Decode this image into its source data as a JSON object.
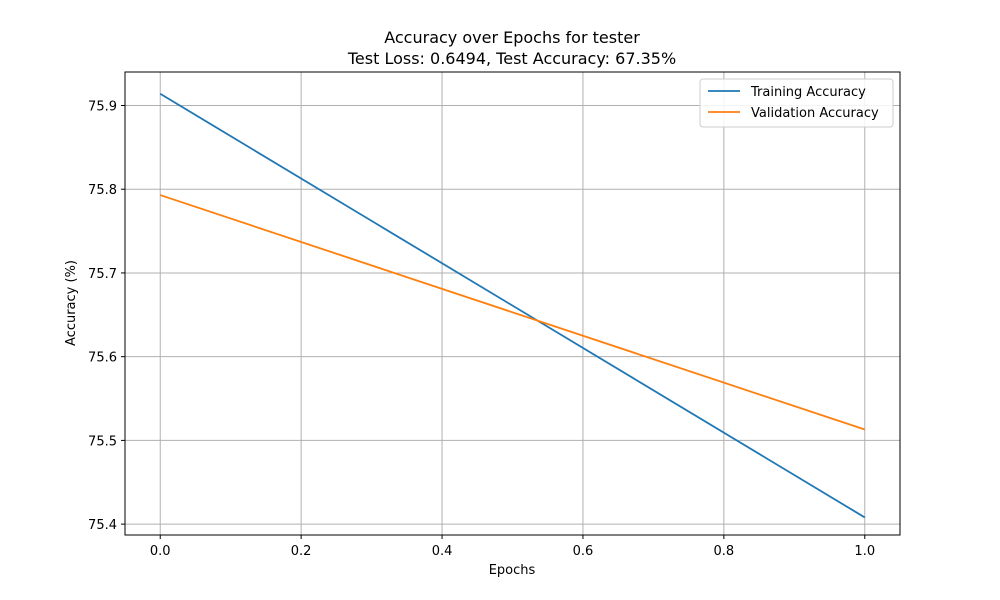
{
  "chart_data": {
    "type": "line",
    "title": "Accuracy over Epochs for tester",
    "subtitle": "Test Loss: 0.6494, Test Accuracy: 67.35%",
    "xlabel": "Epochs",
    "ylabel": "Accuracy (%)",
    "x": [
      0,
      1
    ],
    "xlim": [
      -0.05,
      1.05
    ],
    "ylim": [
      75.387,
      75.94
    ],
    "xticks": [
      0.0,
      0.2,
      0.4,
      0.6,
      0.8,
      1.0
    ],
    "xtick_labels": [
      "0.0",
      "0.2",
      "0.4",
      "0.6",
      "0.8",
      "1.0"
    ],
    "yticks": [
      75.4,
      75.5,
      75.6,
      75.7,
      75.8,
      75.9
    ],
    "ytick_labels": [
      "75.4",
      "75.5",
      "75.6",
      "75.7",
      "75.8",
      "75.9"
    ],
    "grid": true,
    "legend_position": "top-right",
    "series": [
      {
        "name": "Training Accuracy",
        "values": [
          75.914,
          75.408
        ],
        "color": "#1f77b4"
      },
      {
        "name": "Validation Accuracy",
        "values": [
          75.793,
          75.513
        ],
        "color": "#ff7f0e"
      }
    ]
  }
}
